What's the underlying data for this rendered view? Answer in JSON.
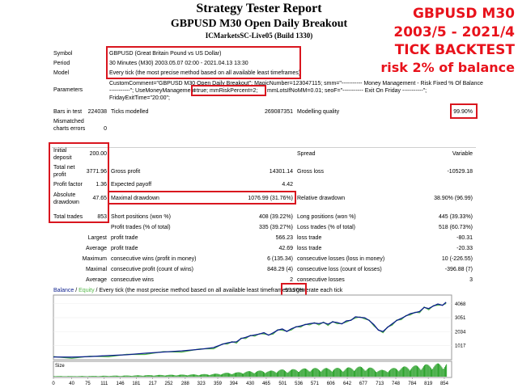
{
  "header": {
    "title": "Strategy Tester Report",
    "subtitle": "GBPUSD M30 Open Daily Breakout",
    "server": "ICMarketsSC-Live05 (Build 1330)"
  },
  "promo": {
    "line1": "GBPUSD M30",
    "line2": "2003/5 - 2021/4",
    "line3": "TICK BACKTEST",
    "line4": "risk 2% of balance"
  },
  "info": {
    "symbol_label": "Symbol",
    "symbol_value": "GBPUSD (Great Britain Pound vs US Dollar)",
    "period_label": "Period",
    "period_value": "30 Minutes (M30) 2003.05.07 02:00 - 2021.04.13 13:30",
    "model_label": "Model",
    "model_value": "Every tick (the most precise method based on all available least timeframes)",
    "parameters_label": "Parameters",
    "parameters_line1a": "CustomComment=\"GBPUSD M30 Open Daily Breakout\"; MagicNumber=123047115; smm=\"----------- Money Management - Risk Fixed % Of Balance",
    "parameters_line2a": "-----------\"; UseMoneyManagement",
    "parameters_line2b": "=true; mmRiskPercent=2;",
    "parameters_line2c": "mmLotsIfNoMM=0.01; seoF=\"----------- Exit On Friday -----------\";",
    "parameters_line3": "FridayExitTime=\"20:00\";"
  },
  "stats": {
    "bars_label": "Bars in test",
    "bars_value": "224038",
    "ticks_label": "Ticks modelled",
    "ticks_value": "269087351",
    "quality_label": "Modelling quality",
    "quality_value": "99.90%",
    "mismatched_label": "Mismatched charts errors",
    "mismatched_value": "0",
    "initial_deposit_label": "Initial deposit",
    "initial_deposit_value": "200.00",
    "spread_label": "Spread",
    "spread_value": "Variable",
    "net_profit_label": "Total net profit",
    "net_profit_value": "3771.96",
    "gross_profit_label": "Gross profit",
    "gross_profit_value": "14301.14",
    "gross_loss_label": "Gross loss",
    "gross_loss_value": "-10529.18",
    "profit_factor_label": "Profit factor",
    "profit_factor_value": "1.36",
    "expected_payoff_label": "Expected payoff",
    "expected_payoff_value": "4.42",
    "abs_drawdown_label": "Absolute drawdown",
    "abs_drawdown_value": "47.65",
    "max_drawdown_label": "Maximal drawdown",
    "max_drawdown_value": "1076.99 (31.76%)",
    "rel_drawdown_label": "Relative drawdown",
    "rel_drawdown_value": "38.90% (96.99)",
    "total_trades_label": "Total trades",
    "total_trades_value": "853",
    "short_label": "Short positions (won %)",
    "short_value": "408 (39.22%)",
    "long_label": "Long positions (won %)",
    "long_value": "445 (39.33%)",
    "profit_trades_label": "Profit trades (% of total)",
    "profit_trades_value": "335 (39.27%)",
    "loss_trades_label": "Loss trades (% of total)",
    "loss_trades_value": "518 (60.73%)",
    "largest_label": "Largest",
    "largest_profit_label": "profit trade",
    "largest_profit_value": "566.23",
    "largest_loss_label": "loss trade",
    "largest_loss_value": "-80.31",
    "average_label": "Average",
    "average_profit_label": "profit trade",
    "average_profit_value": "42.69",
    "average_loss_label": "loss trade",
    "average_loss_value": "-20.33",
    "maximum_label": "Maximum",
    "max_cons_wins_label": "consecutive wins (profit in money)",
    "max_cons_wins_value": "6 (135.34)",
    "max_cons_losses_label": "consecutive losses (loss in money)",
    "max_cons_losses_value": "10 (-226.55)",
    "maximal_label": "Maximal",
    "maximal_cons_profit_label": "consecutive profit (count of wins)",
    "maximal_cons_profit_value": "848.29 (4)",
    "maximal_cons_loss_label": "consecutive loss (count of losses)",
    "maximal_cons_loss_value": "-396.88 (7)",
    "average2_label": "Average",
    "avg_cons_wins_label": "consecutive wins",
    "avg_cons_wins_value": "2",
    "avg_cons_losses_label": "consecutive losses",
    "avg_cons_losses_value": "3"
  },
  "chart": {
    "legend_balance": "Balance",
    "legend_sep": " / ",
    "legend_equity": "Equity",
    "legend_text": " / Every tick (the most precise method based on all available least timeframes to generate each tick",
    "legend_quality": "99.90%",
    "size_label": "Size",
    "colors": {
      "balance": "#0a1d8c",
      "equity": "#55b84a",
      "size": "#1a9a1a",
      "accent": "#e8121b"
    }
  },
  "chart_data": {
    "type": "line",
    "title": "",
    "ylabel": "",
    "xlabel": "",
    "yticks": [
      4068,
      3051,
      2034,
      1017
    ],
    "xticks": [
      0,
      40,
      75,
      111,
      146,
      181,
      217,
      252,
      288,
      323,
      359,
      394,
      430,
      465,
      501,
      536,
      571,
      606,
      642,
      677,
      713,
      748,
      784,
      819,
      854
    ],
    "xlim": [
      0,
      870
    ],
    "ylim": [
      0,
      4700
    ],
    "series": [
      {
        "name": "Balance",
        "x": [
          0,
          40,
          80,
          120,
          160,
          200,
          240,
          280,
          320,
          350,
          370,
          380,
          390,
          400,
          410,
          420,
          430,
          440,
          450,
          460,
          470,
          480,
          490,
          500,
          510,
          520,
          530,
          540,
          550,
          560,
          570,
          580,
          590,
          600,
          610,
          620,
          630,
          640,
          650,
          660,
          670,
          680,
          690,
          700,
          710,
          720,
          730,
          740,
          750,
          760,
          770,
          780,
          790,
          800,
          810,
          820,
          830,
          840,
          850,
          858
        ],
        "y": [
          200,
          190,
          230,
          300,
          360,
          470,
          560,
          640,
          760,
          880,
          1130,
          1220,
          1280,
          1300,
          1540,
          1620,
          1740,
          1800,
          1860,
          1960,
          1780,
          1950,
          2150,
          2230,
          2050,
          2250,
          2380,
          2450,
          2550,
          2620,
          2660,
          2620,
          2700,
          2580,
          2750,
          2700,
          2600,
          2820,
          2860,
          3120,
          3080,
          3050,
          2850,
          2550,
          2150,
          2050,
          2350,
          2600,
          2850,
          3000,
          3180,
          3350,
          3420,
          3500,
          3800,
          3720,
          3900,
          4050,
          3950,
          4180
        ]
      }
    ],
    "size_histogram": "per-trade lot sizes, increasing with balance"
  }
}
